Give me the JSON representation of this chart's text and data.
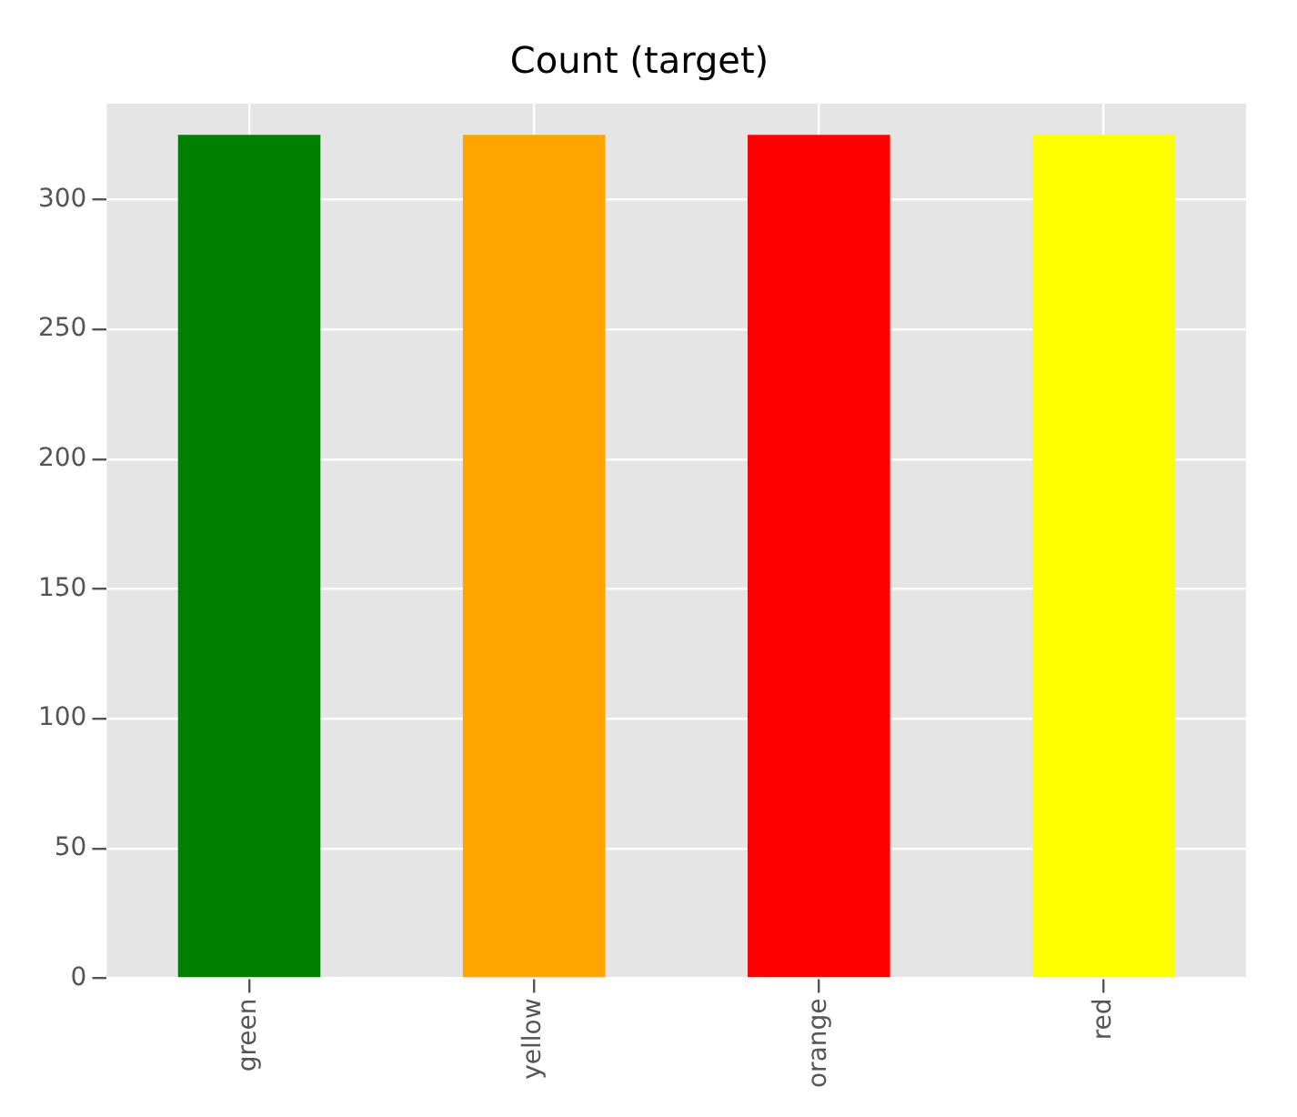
{
  "chart_data": {
    "type": "bar",
    "title": "Count (target)",
    "categories": [
      "green",
      "yellow",
      "orange",
      "red"
    ],
    "values": [
      325,
      325,
      325,
      325
    ],
    "colors": [
      "#008000",
      "#ffa500",
      "#ff0000",
      "#ffff00"
    ],
    "ylim": [
      0,
      337
    ],
    "yticks": [
      0,
      50,
      100,
      150,
      200,
      250,
      300
    ],
    "grid": true,
    "legend": false
  }
}
